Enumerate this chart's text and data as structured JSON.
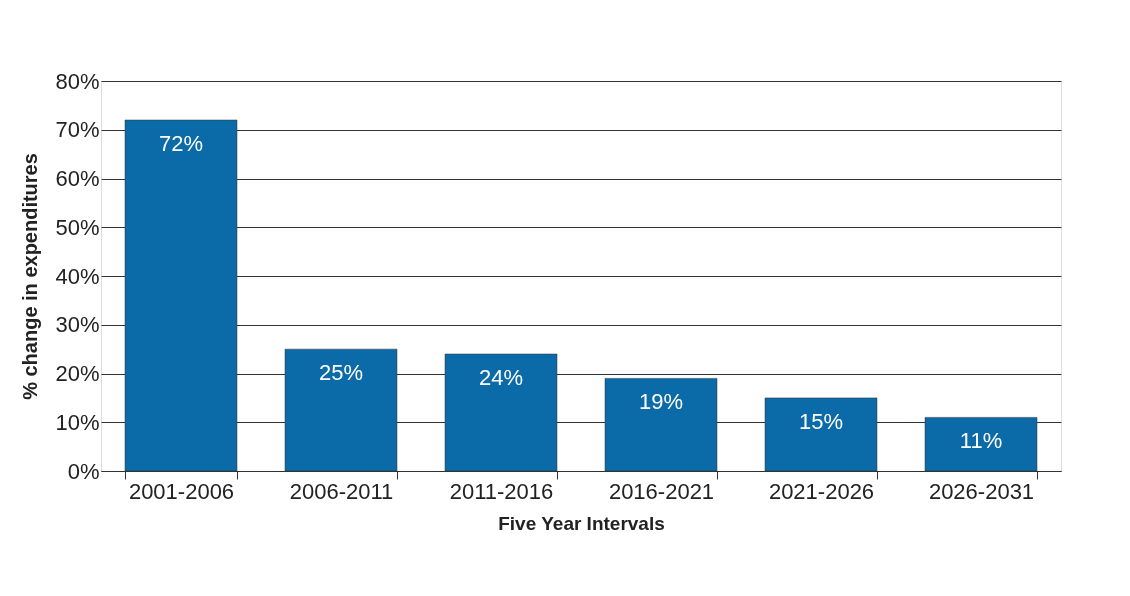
{
  "chart_data": {
    "type": "bar",
    "xlabel": "Five Year Intervals",
    "ylabel": "% change in expenditures",
    "categories": [
      "2001-2006",
      "2006-2011",
      "2011-2016",
      "2016-2021",
      "2021-2026",
      "2026-2031"
    ],
    "values": [
      72,
      25,
      24,
      19,
      15,
      11
    ],
    "color": "#0b6aa8",
    "value_labels": [
      "72%",
      "25%",
      "24%",
      "19%",
      "15%",
      "11%"
    ],
    "ylim": [
      0,
      80
    ],
    "yticks": [
      {
        "value": 0,
        "label": "0%"
      },
      {
        "value": 10,
        "label": "10%"
      },
      {
        "value": 20,
        "label": "20%"
      },
      {
        "value": 30,
        "label": "30%"
      },
      {
        "value": 40,
        "label": "40%"
      },
      {
        "value": 50,
        "label": "50%"
      },
      {
        "value": 60,
        "label": "60%"
      },
      {
        "value": 70,
        "label": "70%"
      },
      {
        "value": 80,
        "label": "80%"
      }
    ],
    "grid": "y"
  }
}
